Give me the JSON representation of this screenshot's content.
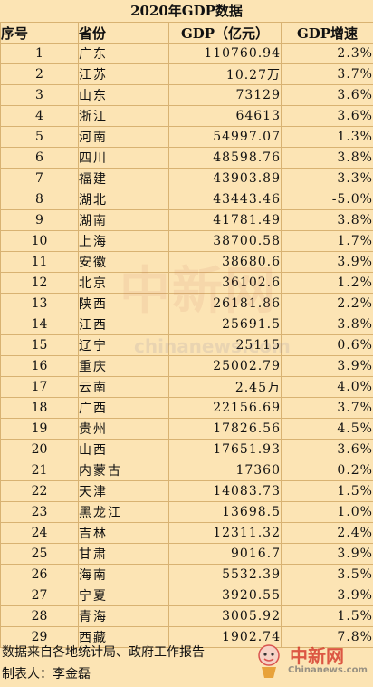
{
  "title": "2020年GDP数据",
  "headers": {
    "seq": "序号",
    "province": "省份",
    "gdp": "GDP（亿元）",
    "growth": "GDP增速"
  },
  "rows": [
    {
      "seq": "1",
      "province": "广东",
      "gdp": "110760.94",
      "growth": "2.3%"
    },
    {
      "seq": "2",
      "province": "江苏",
      "gdp": "10.27万",
      "growth": "3.7%"
    },
    {
      "seq": "3",
      "province": "山东",
      "gdp": "73129",
      "growth": "3.6%"
    },
    {
      "seq": "4",
      "province": "浙江",
      "gdp": "64613",
      "growth": "3.6%"
    },
    {
      "seq": "5",
      "province": "河南",
      "gdp": "54997.07",
      "growth": "1.3%"
    },
    {
      "seq": "6",
      "province": "四川",
      "gdp": "48598.76",
      "growth": "3.8%"
    },
    {
      "seq": "7",
      "province": "福建",
      "gdp": "43903.89",
      "growth": "3.3%"
    },
    {
      "seq": "8",
      "province": "湖北",
      "gdp": "43443.46",
      "growth": "-5.0%"
    },
    {
      "seq": "9",
      "province": "湖南",
      "gdp": "41781.49",
      "growth": "3.8%"
    },
    {
      "seq": "10",
      "province": "上海",
      "gdp": "38700.58",
      "growth": "1.7%"
    },
    {
      "seq": "11",
      "province": "安徽",
      "gdp": "38680.6",
      "growth": "3.9%"
    },
    {
      "seq": "12",
      "province": "北京",
      "gdp": "36102.6",
      "growth": "1.2%"
    },
    {
      "seq": "13",
      "province": "陕西",
      "gdp": "26181.86",
      "growth": "2.2%"
    },
    {
      "seq": "14",
      "province": "江西",
      "gdp": "25691.5",
      "growth": "3.8%"
    },
    {
      "seq": "15",
      "province": "辽宁",
      "gdp": "25115",
      "growth": "0.6%"
    },
    {
      "seq": "16",
      "province": "重庆",
      "gdp": "25002.79",
      "growth": "3.9%"
    },
    {
      "seq": "17",
      "province": "云南",
      "gdp": "2.45万",
      "growth": "4.0%"
    },
    {
      "seq": "18",
      "province": "广西",
      "gdp": "22156.69",
      "growth": "3.7%"
    },
    {
      "seq": "19",
      "province": "贵州",
      "gdp": "17826.56",
      "growth": "4.5%"
    },
    {
      "seq": "20",
      "province": "山西",
      "gdp": "17651.93",
      "growth": "3.6%"
    },
    {
      "seq": "21",
      "province": "内蒙古",
      "gdp": "17360",
      "growth": "0.2%"
    },
    {
      "seq": "22",
      "province": "天津",
      "gdp": "14083.73",
      "growth": "1.5%"
    },
    {
      "seq": "23",
      "province": "黑龙江",
      "gdp": "13698.5",
      "growth": "1.0%"
    },
    {
      "seq": "24",
      "province": "吉林",
      "gdp": "12311.32",
      "growth": "2.4%"
    },
    {
      "seq": "25",
      "province": "甘肃",
      "gdp": "9016.7",
      "growth": "3.9%"
    },
    {
      "seq": "26",
      "province": "海南",
      "gdp": "5532.39",
      "growth": "3.5%"
    },
    {
      "seq": "27",
      "province": "宁夏",
      "gdp": "3920.55",
      "growth": "3.9%"
    },
    {
      "seq": "28",
      "province": "青海",
      "gdp": "3005.92",
      "growth": "1.5%"
    },
    {
      "seq": "29",
      "province": "西藏",
      "gdp": "1902.74",
      "growth": "7.8%"
    }
  ],
  "footer": {
    "source": "数据来自各地统计局、政府工作报告",
    "maker": "制表人：李金磊"
  },
  "watermark": {
    "center_cn": "中新网",
    "center_en": "chinanews.com",
    "corner_cn": "中新网",
    "corner_en": "Chinanews.com"
  },
  "colors": {
    "background": "#FCE4B4",
    "grid": "#D8B272"
  }
}
